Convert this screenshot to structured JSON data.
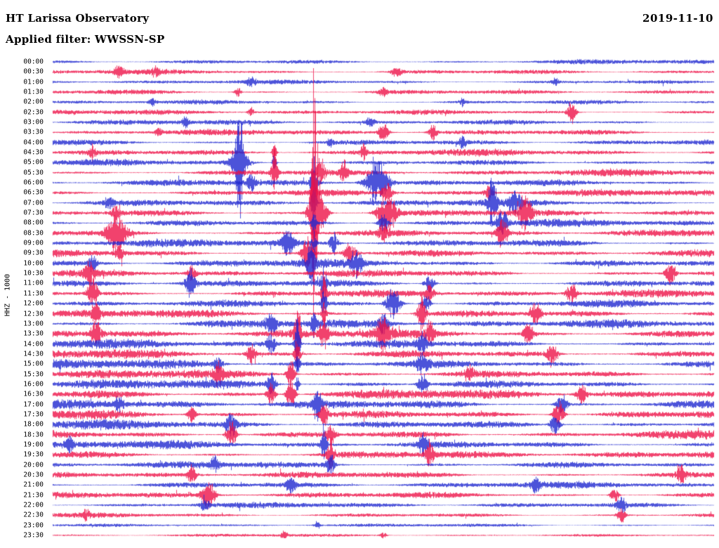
{
  "header": {
    "title": "HT Larissa Observatory",
    "date": "2019-11-10",
    "filter_label": "Applied filter: WWSSN-SP"
  },
  "chart_data": {
    "type": "seismogram-helicorder",
    "station_title": "HT Larissa Observatory",
    "date": "2019-11-10",
    "filter": "WWSSN-SP",
    "channel_scale": "HHZ - 1000",
    "trace_interval_minutes": 30,
    "legend_position": "none",
    "grid": false,
    "colors": {
      "blue": "#1e27cf",
      "red": "#ee1147"
    },
    "rows": [
      {
        "time": "00:00",
        "color": "blue",
        "activity": 0.75
      },
      {
        "time": "00:30",
        "color": "red",
        "activity": 0.85
      },
      {
        "time": "01:00",
        "color": "blue",
        "activity": 0.7
      },
      {
        "time": "01:30",
        "color": "red",
        "activity": 0.8
      },
      {
        "time": "02:00",
        "color": "blue",
        "activity": 0.75
      },
      {
        "time": "02:30",
        "color": "red",
        "activity": 0.8
      },
      {
        "time": "03:00",
        "color": "blue",
        "activity": 0.8
      },
      {
        "time": "03:30",
        "color": "red",
        "activity": 0.9
      },
      {
        "time": "04:00",
        "color": "blue",
        "activity": 0.95
      },
      {
        "time": "04:30",
        "color": "red",
        "activity": 1.0
      },
      {
        "time": "05:00",
        "color": "blue",
        "activity": 1.0
      },
      {
        "time": "05:30",
        "color": "red",
        "activity": 1.05
      },
      {
        "time": "06:00",
        "color": "blue",
        "activity": 1.0
      },
      {
        "time": "06:30",
        "color": "red",
        "activity": 1.05
      },
      {
        "time": "07:00",
        "color": "blue",
        "activity": 1.05
      },
      {
        "time": "07:30",
        "color": "red",
        "activity": 1.1
      },
      {
        "time": "08:00",
        "color": "blue",
        "activity": 1.15
      },
      {
        "time": "08:30",
        "color": "red",
        "activity": 1.15
      },
      {
        "time": "09:00",
        "color": "blue",
        "activity": 1.2
      },
      {
        "time": "09:30",
        "color": "red",
        "activity": 1.15
      },
      {
        "time": "10:00",
        "color": "blue",
        "activity": 1.2
      },
      {
        "time": "10:30",
        "color": "red",
        "activity": 1.1
      },
      {
        "time": "11:00",
        "color": "blue",
        "activity": 1.15
      },
      {
        "time": "11:30",
        "color": "red",
        "activity": 1.2
      },
      {
        "time": "12:00",
        "color": "blue",
        "activity": 1.25
      },
      {
        "time": "12:30",
        "color": "red",
        "activity": 1.3
      },
      {
        "time": "13:00",
        "color": "blue",
        "activity": 1.35
      },
      {
        "time": "13:30",
        "color": "red",
        "activity": 1.35
      },
      {
        "time": "14:00",
        "color": "blue",
        "activity": 1.4
      },
      {
        "time": "14:30",
        "color": "red",
        "activity": 1.45
      },
      {
        "time": "15:00",
        "color": "blue",
        "activity": 1.45
      },
      {
        "time": "15:30",
        "color": "red",
        "activity": 1.4
      },
      {
        "time": "16:00",
        "color": "blue",
        "activity": 1.45
      },
      {
        "time": "16:30",
        "color": "red",
        "activity": 1.5
      },
      {
        "time": "17:00",
        "color": "blue",
        "activity": 1.5
      },
      {
        "time": "17:30",
        "color": "red",
        "activity": 1.45
      },
      {
        "time": "18:00",
        "color": "blue",
        "activity": 1.4
      },
      {
        "time": "18:30",
        "color": "red",
        "activity": 1.3
      },
      {
        "time": "19:00",
        "color": "blue",
        "activity": 1.25
      },
      {
        "time": "19:30",
        "color": "red",
        "activity": 1.2
      },
      {
        "time": "20:00",
        "color": "blue",
        "activity": 1.1
      },
      {
        "time": "20:30",
        "color": "red",
        "activity": 1.0
      },
      {
        "time": "21:00",
        "color": "blue",
        "activity": 1.0
      },
      {
        "time": "21:30",
        "color": "red",
        "activity": 0.95
      },
      {
        "time": "22:00",
        "color": "blue",
        "activity": 0.85
      },
      {
        "time": "22:30",
        "color": "red",
        "activity": 0.75
      },
      {
        "time": "23:00",
        "color": "blue",
        "activity": 0.5
      },
      {
        "time": "23:30",
        "color": "red",
        "activity": 0.45
      }
    ],
    "events_format": [
      "row_index",
      "x_fraction_of_trace",
      "amplitude_px",
      "width_px"
    ],
    "events": [
      [
        1,
        0.1,
        5,
        4
      ],
      [
        1,
        0.155,
        4,
        3
      ],
      [
        1,
        0.52,
        4,
        5
      ],
      [
        2,
        0.3,
        3.5,
        4
      ],
      [
        2,
        0.76,
        3,
        3
      ],
      [
        3,
        0.28,
        4,
        3
      ],
      [
        3,
        0.5,
        4,
        4
      ],
      [
        4,
        0.15,
        3,
        3
      ],
      [
        4,
        0.62,
        3,
        3
      ],
      [
        5,
        0.785,
        9,
        4
      ],
      [
        5,
        0.3,
        4,
        3
      ],
      [
        6,
        0.2,
        4,
        3
      ],
      [
        6,
        0.48,
        4,
        4
      ],
      [
        7,
        0.5,
        8,
        5
      ],
      [
        7,
        0.575,
        6,
        4
      ],
      [
        7,
        0.16,
        4,
        3
      ],
      [
        8,
        0.62,
        5,
        3
      ],
      [
        8,
        0.42,
        4,
        3
      ],
      [
        9,
        0.335,
        10,
        2
      ],
      [
        9,
        0.47,
        6,
        3
      ],
      [
        9,
        0.06,
        5,
        3
      ],
      [
        10,
        0.282,
        38,
        3
      ],
      [
        10,
        0.282,
        14,
        8
      ],
      [
        10,
        0.335,
        8,
        2
      ],
      [
        11,
        0.335,
        18,
        3
      ],
      [
        11,
        0.405,
        12,
        4
      ],
      [
        11,
        0.44,
        9,
        3
      ],
      [
        12,
        0.49,
        18,
        11
      ],
      [
        12,
        0.395,
        22,
        3
      ],
      [
        12,
        0.3,
        6,
        4
      ],
      [
        13,
        0.395,
        18,
        2.5
      ],
      [
        13,
        0.505,
        8,
        5
      ],
      [
        13,
        0.66,
        6,
        4
      ],
      [
        14,
        0.395,
        24,
        2.5
      ],
      [
        14,
        0.665,
        22,
        4
      ],
      [
        14,
        0.7,
        9,
        6
      ],
      [
        14,
        0.085,
        5,
        4
      ],
      [
        15,
        0.395,
        105,
        2.5
      ],
      [
        15,
        0.4,
        28,
        8
      ],
      [
        15,
        0.505,
        18,
        9
      ],
      [
        15,
        0.715,
        15,
        6
      ],
      [
        15,
        0.095,
        6,
        4
      ],
      [
        16,
        0.5,
        8,
        5
      ],
      [
        16,
        0.68,
        9,
        6
      ],
      [
        16,
        0.395,
        10,
        2
      ],
      [
        17,
        0.096,
        17,
        9
      ],
      [
        17,
        0.68,
        13,
        5
      ],
      [
        17,
        0.395,
        8,
        2
      ],
      [
        17,
        0.5,
        7,
        4
      ],
      [
        18,
        0.355,
        11,
        6
      ],
      [
        18,
        0.425,
        9,
        4
      ],
      [
        18,
        0.395,
        8,
        2
      ],
      [
        19,
        0.385,
        15,
        5
      ],
      [
        19,
        0.45,
        9,
        6
      ],
      [
        19,
        0.1,
        5,
        4
      ],
      [
        20,
        0.39,
        17,
        4
      ],
      [
        20,
        0.46,
        10,
        6
      ],
      [
        20,
        0.06,
        6,
        4
      ],
      [
        21,
        0.055,
        8,
        5
      ],
      [
        21,
        0.21,
        7,
        4
      ],
      [
        21,
        0.935,
        10,
        5
      ],
      [
        22,
        0.208,
        12,
        5
      ],
      [
        22,
        0.41,
        10,
        3
      ],
      [
        22,
        0.57,
        7,
        5
      ],
      [
        23,
        0.06,
        13,
        5
      ],
      [
        23,
        0.41,
        14,
        3
      ],
      [
        23,
        0.57,
        8,
        4
      ],
      [
        23,
        0.785,
        9,
        5
      ],
      [
        24,
        0.515,
        13,
        7
      ],
      [
        24,
        0.41,
        10,
        2.5
      ],
      [
        24,
        0.565,
        8,
        4
      ],
      [
        25,
        0.558,
        15,
        4
      ],
      [
        25,
        0.41,
        9,
        2.5
      ],
      [
        25,
        0.73,
        9,
        5
      ],
      [
        25,
        0.065,
        8,
        4
      ],
      [
        26,
        0.33,
        8,
        5
      ],
      [
        26,
        0.395,
        12,
        2.5
      ],
      [
        26,
        0.5,
        9,
        5
      ],
      [
        27,
        0.37,
        30,
        3
      ],
      [
        27,
        0.41,
        12,
        4
      ],
      [
        27,
        0.5,
        13,
        7
      ],
      [
        27,
        0.57,
        10,
        4
      ],
      [
        27,
        0.72,
        9,
        5
      ],
      [
        27,
        0.065,
        10,
        5
      ],
      [
        28,
        0.37,
        22,
        2.5
      ],
      [
        28,
        0.33,
        8,
        4
      ],
      [
        28,
        0.56,
        8,
        5
      ],
      [
        29,
        0.37,
        12,
        3
      ],
      [
        29,
        0.755,
        10,
        5
      ],
      [
        29,
        0.3,
        8,
        4
      ],
      [
        30,
        0.56,
        9,
        5
      ],
      [
        30,
        0.25,
        7,
        4
      ],
      [
        30,
        0.37,
        8,
        2.5
      ],
      [
        31,
        0.25,
        9,
        4
      ],
      [
        31,
        0.36,
        12,
        4
      ],
      [
        31,
        0.63,
        7,
        4
      ],
      [
        32,
        0.33,
        10,
        4
      ],
      [
        32,
        0.56,
        8,
        5
      ],
      [
        32,
        0.37,
        7,
        2
      ],
      [
        33,
        0.36,
        16,
        4
      ],
      [
        33,
        0.33,
        9,
        4
      ],
      [
        33,
        0.8,
        8,
        5
      ],
      [
        34,
        0.4,
        12,
        4
      ],
      [
        34,
        0.77,
        9,
        5
      ],
      [
        34,
        0.1,
        6,
        4
      ],
      [
        35,
        0.41,
        10,
        4
      ],
      [
        35,
        0.765,
        12,
        5
      ],
      [
        35,
        0.21,
        7,
        4
      ],
      [
        36,
        0.27,
        10,
        5
      ],
      [
        36,
        0.76,
        9,
        5
      ],
      [
        37,
        0.27,
        12,
        5
      ],
      [
        37,
        0.42,
        8,
        4
      ],
      [
        38,
        0.025,
        6,
        3
      ],
      [
        38,
        0.41,
        16,
        2.5
      ],
      [
        38,
        0.56,
        8,
        4
      ],
      [
        39,
        0.42,
        14,
        3
      ],
      [
        39,
        0.57,
        11,
        4
      ],
      [
        40,
        0.42,
        9,
        4
      ],
      [
        40,
        0.245,
        6,
        4
      ],
      [
        41,
        0.21,
        8,
        4
      ],
      [
        41,
        0.95,
        9,
        4
      ],
      [
        42,
        0.36,
        7,
        4
      ],
      [
        42,
        0.73,
        6,
        4
      ],
      [
        43,
        0.235,
        13,
        6
      ],
      [
        43,
        0.85,
        7,
        4
      ],
      [
        44,
        0.23,
        5,
        4
      ],
      [
        44,
        0.86,
        8,
        4
      ],
      [
        45,
        0.05,
        4,
        3
      ],
      [
        45,
        0.86,
        6,
        4
      ],
      [
        46,
        0.4,
        3,
        3
      ],
      [
        47,
        0.35,
        3,
        3
      ],
      [
        47,
        0.5,
        2.5,
        3
      ]
    ]
  }
}
